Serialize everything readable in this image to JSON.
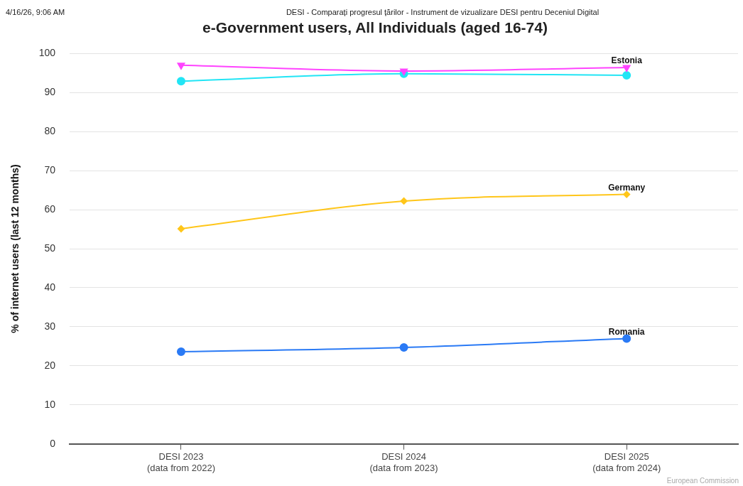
{
  "chart_data": {
    "type": "line",
    "title": "e-Government users, All Individuals (aged 16-74)",
    "ylabel": "% of internet users (last 12 months)",
    "categories": [
      "DESI 2023\n(data from 2022)",
      "DESI 2024\n(data from 2023)",
      "DESI 2025\n(data from 2024)"
    ],
    "series": [
      {
        "name": "Estonia",
        "color": "#ff44ff",
        "marker": "triangle",
        "values": [
          97.0,
          95.5,
          96.4
        ]
      },
      {
        "color": "#22e5f5",
        "marker": "circle",
        "values": [
          92.9,
          94.8,
          94.4
        ]
      },
      {
        "name": "Germany",
        "color": "#ffc61a",
        "marker": "diamond",
        "values": [
          55.1,
          62.2,
          63.9
        ]
      },
      {
        "name": "Romania",
        "color": "#2a7af5",
        "marker": "circle",
        "values": [
          23.6,
          24.7,
          27.0
        ]
      }
    ],
    "ylim": [
      0,
      100
    ],
    "yticks": [
      0,
      10,
      20,
      30,
      40,
      50,
      60,
      70,
      80,
      90,
      100
    ],
    "grid": "y",
    "legend": false,
    "annotations": [
      "4/16/26, 9:06 AM",
      "DESI - Comparați progresul țărilor - Instrument de vizualizare DESI pentru Deceniul Digital",
      "European Commission"
    ]
  }
}
